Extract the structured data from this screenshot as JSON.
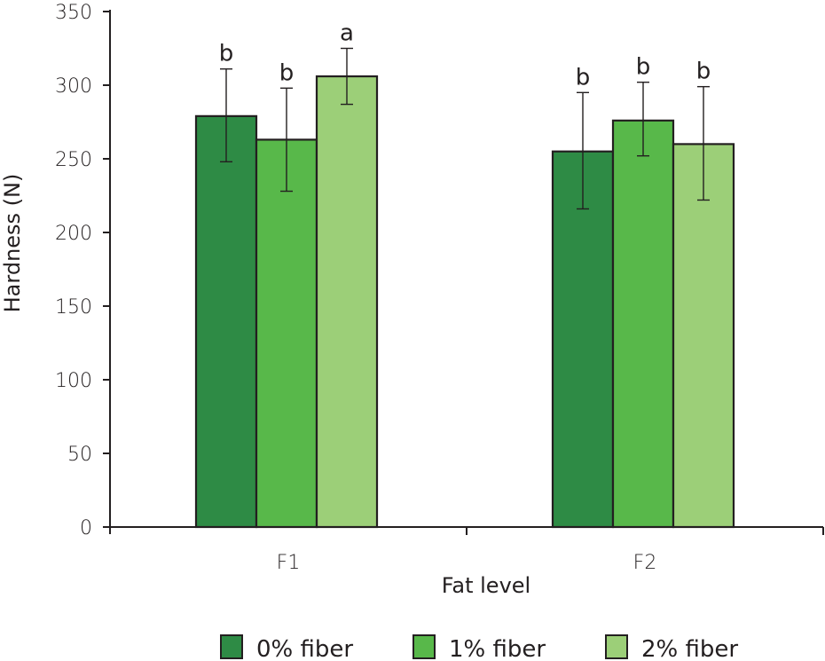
{
  "chart_data": {
    "type": "bar",
    "title": "",
    "xlabel": "Fat level",
    "ylabel": "Hardness (N)",
    "ylim": [
      0,
      350
    ],
    "yticks": [
      0,
      50,
      100,
      150,
      200,
      250,
      300,
      350
    ],
    "categories": [
      "F1",
      "F2"
    ],
    "grid": false,
    "legend_position": "bottom",
    "series": [
      {
        "name": "0% fiber",
        "color": "#2e8b45",
        "values": [
          279,
          255
        ],
        "error_low": [
          248,
          216
        ],
        "error_high": [
          311,
          295
        ],
        "significance": [
          "b",
          "b"
        ]
      },
      {
        "name": "1% fiber",
        "color": "#58b84a",
        "values": [
          263,
          276
        ],
        "error_low": [
          228,
          252
        ],
        "error_high": [
          298,
          302
        ],
        "significance": [
          "b",
          "b"
        ]
      },
      {
        "name": "2% fiber",
        "color": "#9ccf78",
        "values": [
          306,
          260
        ],
        "error_low": [
          287,
          222
        ],
        "error_high": [
          325,
          299
        ],
        "significance": [
          "a",
          "b"
        ]
      }
    ]
  }
}
